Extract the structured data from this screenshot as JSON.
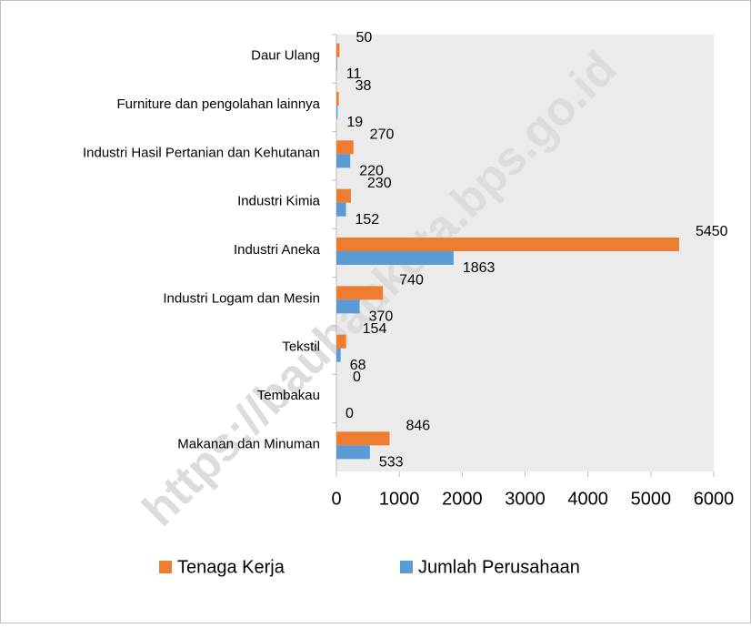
{
  "chart_data": {
    "type": "hbar",
    "categories": [
      "Daur Ulang",
      "Furniture dan pengolahan lainnya",
      "Industri Hasil Pertanian dan Kehutanan",
      "Industri Kimia",
      "Industri Aneka",
      "Industri Logam dan Mesin",
      "Tekstil",
      "Tembakau",
      "Makanan dan Minuman"
    ],
    "series": [
      {
        "name": "Tenaga Kerja",
        "color": "#ed7d31",
        "values": [
          50,
          38,
          270,
          230,
          5450,
          740,
          154,
          0,
          846
        ]
      },
      {
        "name": "Jumlah Perusahaan",
        "color": "#5b9bd5",
        "values": [
          11,
          19,
          220,
          152,
          1863,
          370,
          68,
          0,
          533
        ]
      }
    ],
    "xlim": [
      0,
      6000
    ],
    "xticks": [
      0,
      1000,
      2000,
      3000,
      4000,
      5000,
      6000
    ],
    "legend": "bottom"
  },
  "watermark": "https://baubaukota.bps.go.id"
}
